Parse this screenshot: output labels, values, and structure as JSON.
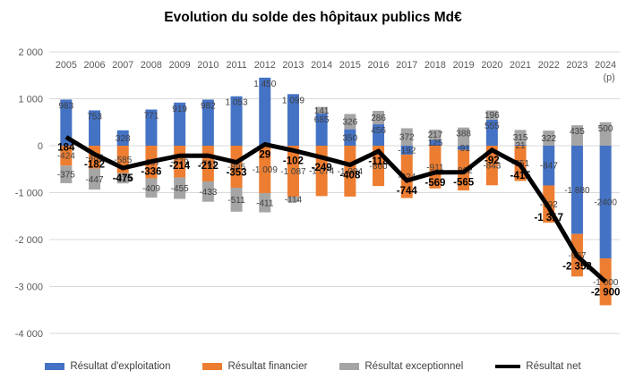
{
  "title": "Evolution du solde des hôpitaux publics Md€",
  "chart_data": {
    "type": "bar",
    "subtype": "stacked-bars-with-line",
    "title": "Evolution du solde des hôpitaux publics Md€",
    "categories": [
      "2005",
      "2006",
      "2007",
      "2008",
      "2009",
      "2010",
      "2011",
      "2012",
      "2013",
      "2014",
      "2015",
      "2016",
      "2017",
      "2018",
      "2019",
      "2020",
      "2021",
      "2022",
      "2023",
      "2024"
    ],
    "last_category_suffix": "(p)",
    "ylim": [
      -4000,
      2000
    ],
    "grid": true,
    "legend_position": "bottom",
    "y_ticks": [
      {
        "value": 2000,
        "label": "2 000"
      },
      {
        "value": 1000,
        "label": "1 000"
      },
      {
        "value": 0,
        "label": "0"
      },
      {
        "value": -1000,
        "label": "-1 000"
      },
      {
        "value": -2000,
        "label": "-2 000"
      },
      {
        "value": -3000,
        "label": "-3 000"
      },
      {
        "value": -4000,
        "label": "-4 000"
      }
    ],
    "series": [
      {
        "name": "Résultat d'exploitation",
        "type": "bar",
        "color": "#4472C4",
        "values": [
          983,
          753,
          328,
          771,
          919,
          982,
          1053,
          1450,
          1099,
          685,
          350,
          456,
          -192,
          125,
          -91,
          555,
          21,
          -847,
          -1880,
          -2400
        ],
        "labels": [
          "983",
          "753",
          "328",
          "771",
          "919",
          "982",
          "1 053",
          "1 450",
          "1 099",
          "685",
          "350",
          "456",
          "-192",
          "125",
          "-91",
          "555",
          "21",
          "-847",
          "-1 880",
          "-2400"
        ]
      },
      {
        "name": "Résultat financier",
        "type": "bar",
        "color": "#ED7D31",
        "values": [
          -424,
          -488,
          -585,
          -697,
          -679,
          -761,
          -895,
          -1009,
          -1087,
          -1074,
          -1084,
          -860,
          -924,
          -911,
          -862,
          -843,
          -751,
          -792,
          -907,
          -1000
        ],
        "labels": [
          "-424",
          "-488",
          "-585",
          "-697",
          "-679",
          "-761",
          "-895",
          "-1 009",
          "-1 087",
          "-1 074",
          "-1 084",
          "-860",
          "-924",
          "-911",
          "-862",
          "-843",
          "-751",
          "-792",
          "-907",
          "-1 000"
        ]
      },
      {
        "name": "Résultat exceptionnel",
        "type": "bar",
        "color": "#A5A5A5",
        "values": [
          -375,
          -447,
          -219,
          -409,
          -455,
          -433,
          -511,
          -411,
          -114,
          141,
          326,
          286,
          372,
          217,
          388,
          196,
          315,
          322,
          435,
          500
        ],
        "labels": [
          "-375",
          "-447",
          "-219",
          "-409",
          "-455",
          "-433",
          "-511",
          "-411",
          "-114",
          "141",
          "326",
          "286",
          "372",
          "217",
          "388",
          "196",
          "315",
          "322",
          "435",
          "500"
        ]
      },
      {
        "name": "Résultat net",
        "type": "line",
        "color": "#000000",
        "values": [
          184,
          -182,
          -475,
          -336,
          -214,
          -212,
          -353,
          29,
          -102,
          -249,
          -408,
          -118,
          -744,
          -569,
          -565,
          -92,
          -415,
          -1317,
          -2352,
          -2900
        ],
        "labels": [
          "184",
          "-182",
          "-475",
          "-336",
          "-214",
          "-212",
          "-353",
          "29",
          "-102",
          "-249",
          "-408",
          "-118",
          "-744",
          "-569",
          "-565",
          "-92",
          "-415",
          "-1 317",
          "-2 352",
          "-2 900"
        ]
      }
    ],
    "colors": {
      "grid": "#D9D9D9",
      "axis_text": "#595959",
      "bar_label_text": "#404040",
      "net_label_text": "#000000",
      "background": "#FFFFFF"
    }
  }
}
